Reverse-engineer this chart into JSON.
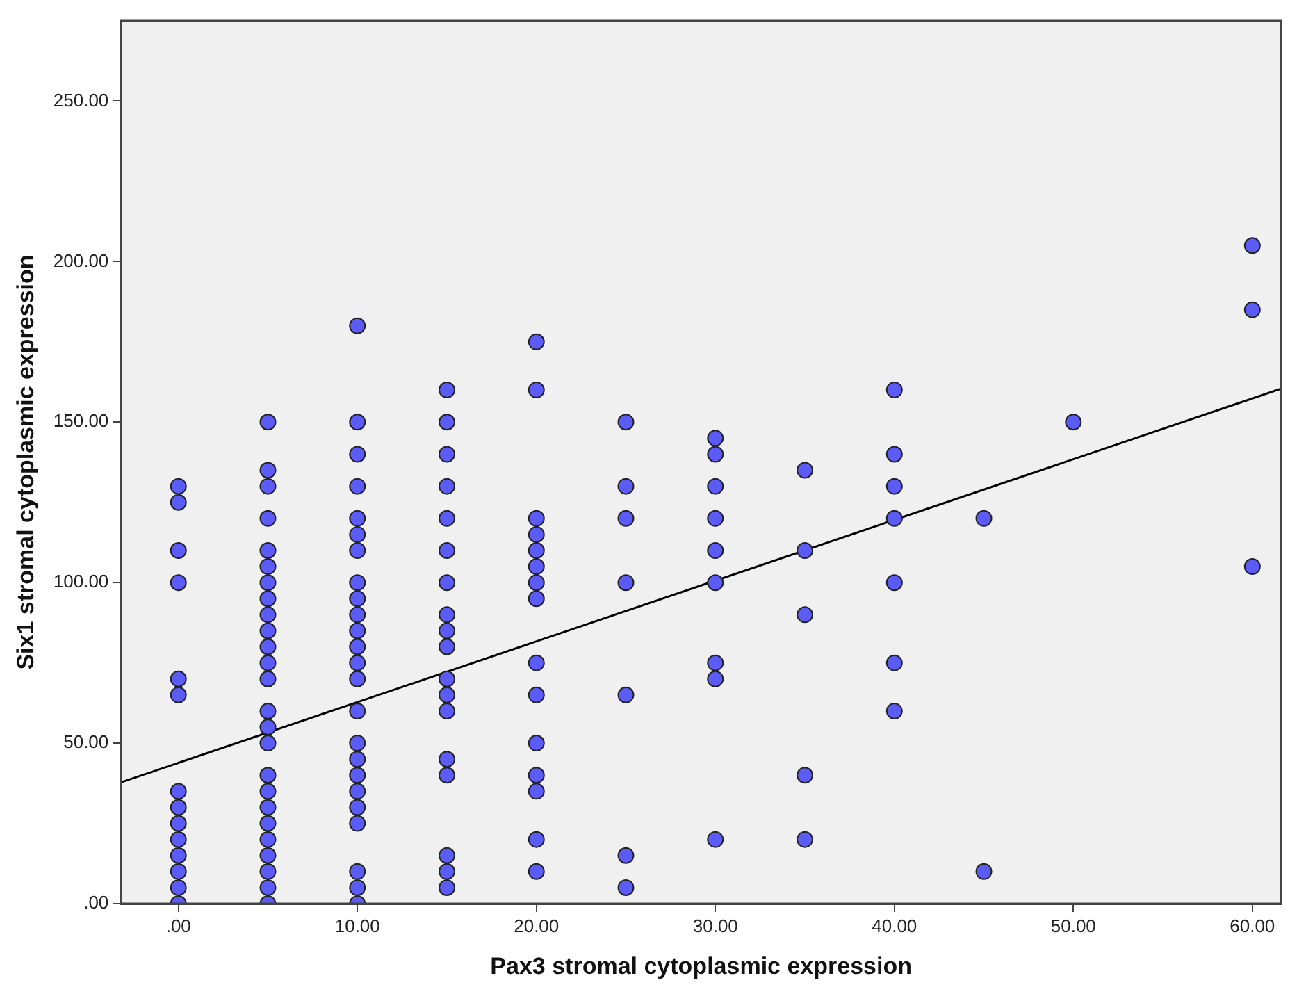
{
  "chart_data": {
    "type": "scatter",
    "xlabel": "Pax3 stromal cytoplasmic expression",
    "ylabel": "Six1 stromal cytoplasmic expression",
    "xlim": [
      -3.2,
      61.6
    ],
    "ylim": [
      0,
      275
    ],
    "xticks": [
      {
        "value": 0,
        "label": ".00"
      },
      {
        "value": 10,
        "label": "10.00"
      },
      {
        "value": 20,
        "label": "20.00"
      },
      {
        "value": 30,
        "label": "30.00"
      },
      {
        "value": 40,
        "label": "40.00"
      },
      {
        "value": 50,
        "label": "50.00"
      },
      {
        "value": 60,
        "label": "60.00"
      }
    ],
    "yticks": [
      {
        "value": 0,
        "label": ".00"
      },
      {
        "value": 50,
        "label": "50.00"
      },
      {
        "value": 100,
        "label": "100.00"
      },
      {
        "value": 150,
        "label": "150.00"
      },
      {
        "value": 200,
        "label": "200.00"
      },
      {
        "value": 250,
        "label": "250.00"
      }
    ],
    "grid": false,
    "legend": false,
    "marker": "circle",
    "series": [
      {
        "color": "#5b5bf5",
        "x": [
          0,
          0,
          0,
          0,
          0,
          0,
          0,
          0,
          0,
          0,
          0,
          0,
          0,
          0,
          5,
          5,
          5,
          5,
          5,
          5,
          5,
          5,
          5,
          5,
          5,
          5,
          5,
          5,
          5,
          5,
          5,
          5,
          5,
          5,
          5,
          5,
          5,
          5,
          5,
          10,
          10,
          10,
          10,
          10,
          10,
          10,
          10,
          10,
          10,
          10,
          10,
          10,
          10,
          10,
          10,
          10,
          10,
          10,
          10,
          10,
          10,
          10,
          10,
          15,
          15,
          15,
          15,
          15,
          15,
          15,
          15,
          15,
          15,
          15,
          15,
          15,
          15,
          15,
          15,
          15,
          15,
          20,
          20,
          20,
          20,
          20,
          20,
          20,
          20,
          20,
          20,
          20,
          20,
          20,
          20,
          20,
          25,
          25,
          25,
          25,
          25,
          25,
          25,
          30,
          30,
          30,
          30,
          30,
          30,
          30,
          30,
          30,
          35,
          35,
          35,
          35,
          35,
          40,
          40,
          40,
          40,
          40,
          40,
          40,
          45,
          45,
          50,
          60,
          60,
          60
        ],
        "values": [
          130,
          125,
          110,
          100,
          70,
          65,
          35,
          30,
          25,
          20,
          15,
          10,
          5,
          0,
          150,
          135,
          130,
          120,
          110,
          105,
          100,
          95,
          90,
          85,
          80,
          75,
          70,
          60,
          55,
          50,
          40,
          35,
          30,
          25,
          20,
          15,
          10,
          5,
          0,
          180,
          150,
          140,
          130,
          120,
          115,
          110,
          100,
          95,
          90,
          85,
          80,
          75,
          70,
          60,
          50,
          45,
          40,
          35,
          30,
          25,
          10,
          5,
          0,
          160,
          150,
          140,
          130,
          120,
          110,
          100,
          90,
          85,
          80,
          70,
          65,
          60,
          45,
          40,
          15,
          10,
          5,
          175,
          160,
          120,
          115,
          110,
          105,
          100,
          95,
          75,
          65,
          50,
          40,
          35,
          20,
          10,
          150,
          130,
          120,
          100,
          65,
          15,
          5,
          145,
          140,
          130,
          120,
          110,
          100,
          75,
          70,
          20,
          135,
          110,
          90,
          40,
          20,
          160,
          140,
          130,
          120,
          100,
          75,
          60,
          120,
          10,
          150,
          205,
          185,
          105
        ]
      },
      {
        "type": "line",
        "color": "#000000",
        "marker": "none",
        "x": [
          -3.2,
          61.6
        ],
        "values": [
          37.8,
          160.4
        ]
      }
    ]
  }
}
